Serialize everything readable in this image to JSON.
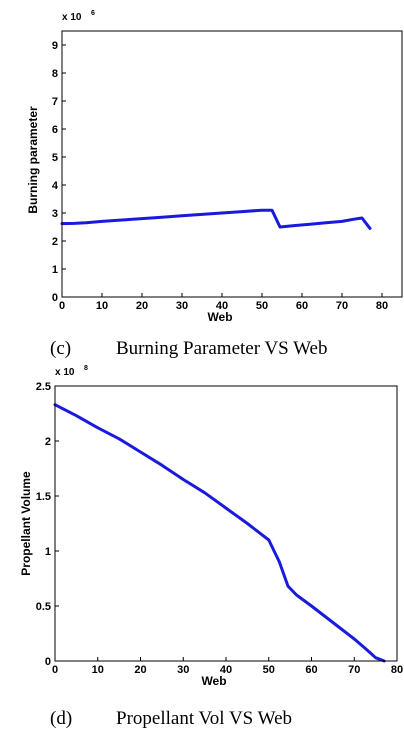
{
  "chart_data": [
    {
      "type": "line",
      "caption_tag": "(c)",
      "caption_text": "Burning Parameter VS Web",
      "xlabel": "Web",
      "ylabel": "Burning parameter",
      "exponent_base": "x 10",
      "exponent_power": "6",
      "xlim": [
        0,
        85
      ],
      "ylim": [
        0,
        9.5
      ],
      "xticks": [
        0,
        10,
        20,
        30,
        40,
        50,
        60,
        70,
        80
      ],
      "yticks": [
        0,
        1,
        2,
        3,
        4,
        5,
        6,
        7,
        8,
        9
      ],
      "line_color": "#1a1adf",
      "series": [
        {
          "x": [
            0,
            3,
            6,
            10,
            15,
            20,
            25,
            30,
            35,
            40,
            45,
            50,
            52.5,
            54.5,
            58,
            62,
            66,
            70,
            73,
            75,
            77
          ],
          "y": [
            2.62,
            2.63,
            2.65,
            2.7,
            2.75,
            2.8,
            2.85,
            2.9,
            2.95,
            3.0,
            3.05,
            3.1,
            3.1,
            2.5,
            2.55,
            2.6,
            2.65,
            2.7,
            2.78,
            2.82,
            2.45
          ]
        }
      ]
    },
    {
      "type": "line",
      "caption_tag": "(d)",
      "caption_text": "Propellant Vol VS Web",
      "xlabel": "Web",
      "ylabel": "Propellant Volume",
      "exponent_base": "x 10",
      "exponent_power": "8",
      "xlim": [
        0,
        80
      ],
      "ylim": [
        0,
        2.5
      ],
      "xticks": [
        0,
        10,
        20,
        30,
        40,
        50,
        60,
        70,
        80
      ],
      "yticks": [
        0,
        0.5,
        1,
        1.5,
        2,
        2.5
      ],
      "line_color": "#1a1adf",
      "series": [
        {
          "x": [
            0,
            5,
            10,
            15,
            20,
            25,
            30,
            35,
            40,
            45,
            50,
            52.5,
            54.5,
            56.5,
            60,
            65,
            70,
            73,
            75,
            77
          ],
          "y": [
            2.33,
            2.23,
            2.12,
            2.02,
            1.9,
            1.78,
            1.65,
            1.53,
            1.39,
            1.25,
            1.1,
            0.9,
            0.68,
            0.6,
            0.5,
            0.35,
            0.2,
            0.1,
            0.03,
            0.0
          ]
        }
      ]
    }
  ]
}
